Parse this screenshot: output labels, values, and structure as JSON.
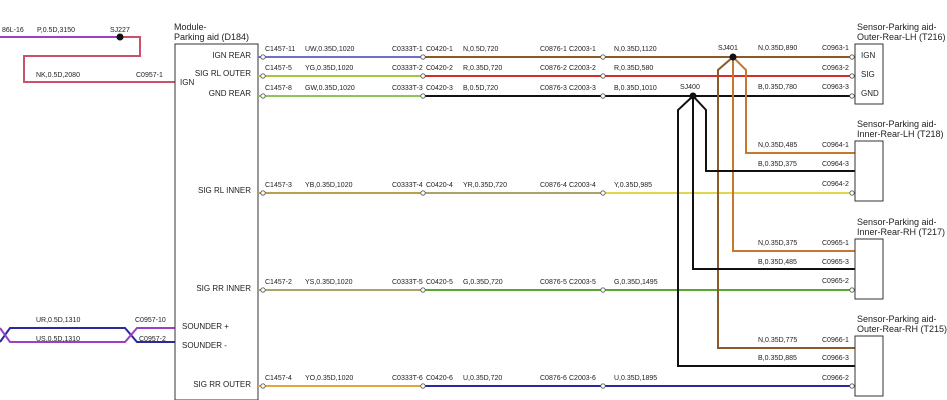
{
  "colors": {
    "purple": "#9b3fc9",
    "pink": "#c9516a",
    "blue_white": "#6f6fc8",
    "yellow_green": "#a6c63c",
    "green_white": "#8fc45a",
    "brown": "#8a5a28",
    "red": "#d22b2b",
    "black": "#111111",
    "yellow_brown": "#b7a24b",
    "yellow": "#e3d64a",
    "yellow_slate": "#a8a56a",
    "green": "#5aa62b",
    "yellow_orange": "#e0a83c",
    "dark_blue": "#2a2a9c",
    "orange_brown": "#c8782c",
    "box": "#333333"
  },
  "left": {
    "top_ref": "86L-16",
    "top_wire": "P,0.5D,3150",
    "splice": "SJ227",
    "ign_wire": "NK,0.5D,2080",
    "ign_conn": "C0957-1",
    "sounder_wire_1": "UR,0.5D,1310",
    "sounder_conn_1": "C0957-10",
    "sounder_wire_2": "US,0.5D,1310",
    "sounder_conn_2": "C0957-2"
  },
  "module": {
    "title_line1": "Module-",
    "title_line2": "Parking aid (D184)",
    "pins": [
      {
        "label": "IGN REAR"
      },
      {
        "label": "SIG RL OUTER"
      },
      {
        "label": "GND REAR"
      },
      {
        "label": "IGN"
      },
      {
        "label": "SIG RL INNER"
      },
      {
        "label": "SIG RR INNER"
      },
      {
        "label": "SOUNDER +"
      },
      {
        "label": "SOUNDER -"
      },
      {
        "label": "SIG RR OUTER"
      }
    ]
  },
  "circuits": [
    {
      "c1": "C1457-11",
      "w1": "UW,0.35D,1020",
      "c2": "C0333T-1",
      "c3": "C0420-1",
      "w2": "N,0.5D,720",
      "c4": "C0876-1",
      "c5": "C2003-1",
      "w3": "N,0.35D,1120"
    },
    {
      "c1": "C1457-5",
      "w1": "YG,0.35D,1020",
      "c2": "C0333T-2",
      "c3": "C0420-2",
      "w2": "R,0.35D,720",
      "c4": "C0876-2",
      "c5": "C2003-2",
      "w3": "R,0.35D,580"
    },
    {
      "c1": "C1457-8",
      "w1": "GW,0.35D,1020",
      "c2": "C0333T-3",
      "c3": "C0420-3",
      "w2": "B,0.5D,720",
      "c4": "C0876-3",
      "c5": "C2003-3",
      "w3": "B,0.35D,1010"
    },
    {
      "c1": "C1457-3",
      "w1": "YB,0.35D,1020",
      "c2": "C0333T-4",
      "c3": "C0420-4",
      "w2": "YR,0.35D,720",
      "c4": "C0876-4",
      "c5": "C2003-4",
      "w3": "Y,0.35D,985"
    },
    {
      "c1": "C1457-2",
      "w1": "YS,0.35D,1020",
      "c2": "C0333T-5",
      "c3": "C0420-5",
      "w2": "G,0.35D,720",
      "c4": "C0876-5",
      "c5": "C2003-5",
      "w3": "G,0.35D,1495"
    },
    {
      "c1": "C1457-4",
      "w1": "YO,0.35D,1020",
      "c2": "C0333T-6",
      "c3": "C0420-6",
      "w2": "U,0.35D,720",
      "c4": "C0876-6",
      "c5": "C2003-6",
      "w3": "U,0.35D,1895"
    }
  ],
  "splices": {
    "sj401": "SJ401",
    "sj400": "SJ400"
  },
  "sensors": [
    {
      "title_line1": "Sensor-Parking aid-",
      "title_line2": "Outer-Rear-LH (T216)",
      "pins": [
        "IGN",
        "SIG",
        "GND"
      ],
      "wires": [
        {
          "label": "N,0.35D,890",
          "conn": "C0963-1"
        },
        {
          "label": "",
          "conn": "C0963-2"
        },
        {
          "label": "B,0.35D,780",
          "conn": "C0963-3"
        }
      ]
    },
    {
      "title_line1": "Sensor-Parking aid-",
      "title_line2": "Inner-Rear-LH (T218)",
      "wires": [
        {
          "label": "N,0.35D,485",
          "conn": "C0964-1"
        },
        {
          "label": "B,0.35D,375",
          "conn": "C0964-3"
        },
        {
          "label": "",
          "conn": "C0964-2"
        }
      ]
    },
    {
      "title_line1": "Sensor-Parking aid-",
      "title_line2": "Inner-Rear-RH (T217)",
      "wires": [
        {
          "label": "N,0.35D,375",
          "conn": "C0965-1"
        },
        {
          "label": "B,0.35D,485",
          "conn": "C0965-3"
        },
        {
          "label": "",
          "conn": "C0965-2"
        }
      ]
    },
    {
      "title_line1": "Sensor-Parking aid-",
      "title_line2": "Outer-Rear-RH (T215)",
      "wires": [
        {
          "label": "N,0.35D,775",
          "conn": "C0966-1"
        },
        {
          "label": "B,0.35D,885",
          "conn": "C0966-3"
        },
        {
          "label": "",
          "conn": "C0966-2"
        }
      ]
    }
  ]
}
